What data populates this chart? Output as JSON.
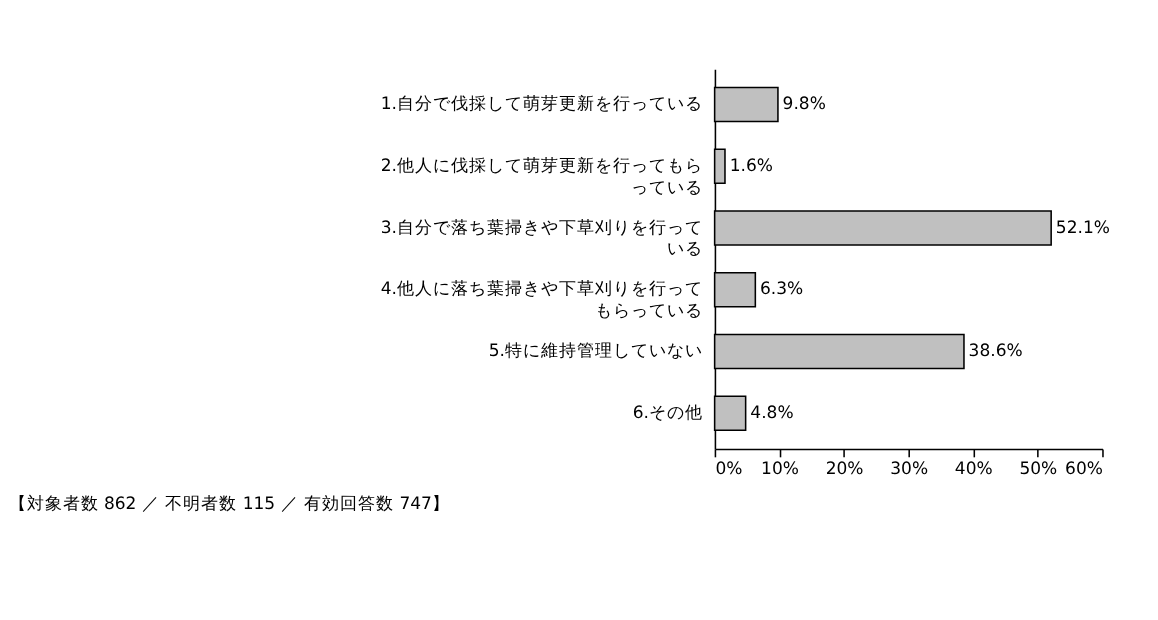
{
  "chart_data": {
    "type": "bar",
    "orientation": "horizontal",
    "categories": [
      "1.自分で伐採して萌芽更新を行っている",
      "2.他人に伐採して萌芽更新を行ってもらっている",
      "3.自分で落ち葉掃きや下草刈りを行っている",
      "4.他人に落ち葉掃きや下草刈りを行ってもらっている",
      "5.特に維持管理していない",
      "6.その他"
    ],
    "values": [
      9.8,
      1.6,
      52.1,
      6.3,
      38.6,
      4.8
    ],
    "value_labels": [
      "9.8%",
      "1.6%",
      "52.1%",
      "6.3%",
      "38.6%",
      "4.8%"
    ],
    "color": "#c0c0c0",
    "xlim": [
      0,
      60
    ],
    "xticks": [
      {
        "value": 0,
        "label": "0%"
      },
      {
        "value": 10,
        "label": "10%"
      },
      {
        "value": 20,
        "label": "20%"
      },
      {
        "value": 30,
        "label": "30%"
      },
      {
        "value": 40,
        "label": "40%"
      },
      {
        "value": 50,
        "label": "50%"
      },
      {
        "value": 60,
        "label": "60%"
      }
    ],
    "grid": false,
    "annotations": [
      "【対象者数 862 ／ 不明者数 115 ／ 有効回答数 747】"
    ]
  }
}
